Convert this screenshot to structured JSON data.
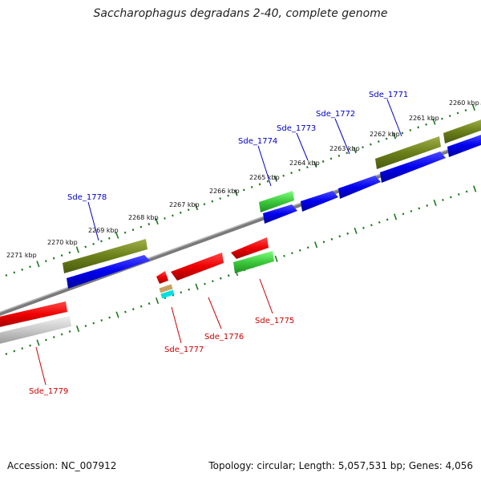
{
  "title": "Saccharophagus degradans 2-40, complete genome",
  "footer": {
    "accession": "Accession: NC_007912",
    "info": "Topology: circular; Length: 5,057,531 bp; Genes: 4,056"
  },
  "colors": {
    "forward_cds": "#0000ee",
    "reverse_cds": "#ee0000",
    "forward_feature": "#6b7f1a",
    "reverse_feature": "#3cc83c",
    "backbone": "#808080",
    "tick": "#1a7a1a",
    "forward_label": "#0000cc",
    "reverse_label": "#cc0000"
  },
  "kbp_labels": [
    "2271 kbp",
    "2270 kbp",
    "2269 kbp",
    "2268 kbp",
    "2267 kbp",
    "2266 kbp",
    "2265 kbp",
    "2264 kbp",
    "2263 kbp",
    "2262 kbp",
    "2261 kbp",
    "2260 kbp"
  ],
  "forward_genes": [
    "Sde_1778",
    "Sde_1774",
    "Sde_1773",
    "Sde_1772",
    "Sde_1771"
  ],
  "reverse_genes": [
    "Sde_1779",
    "Sde_1777",
    "Sde_1776",
    "Sde_1775"
  ]
}
